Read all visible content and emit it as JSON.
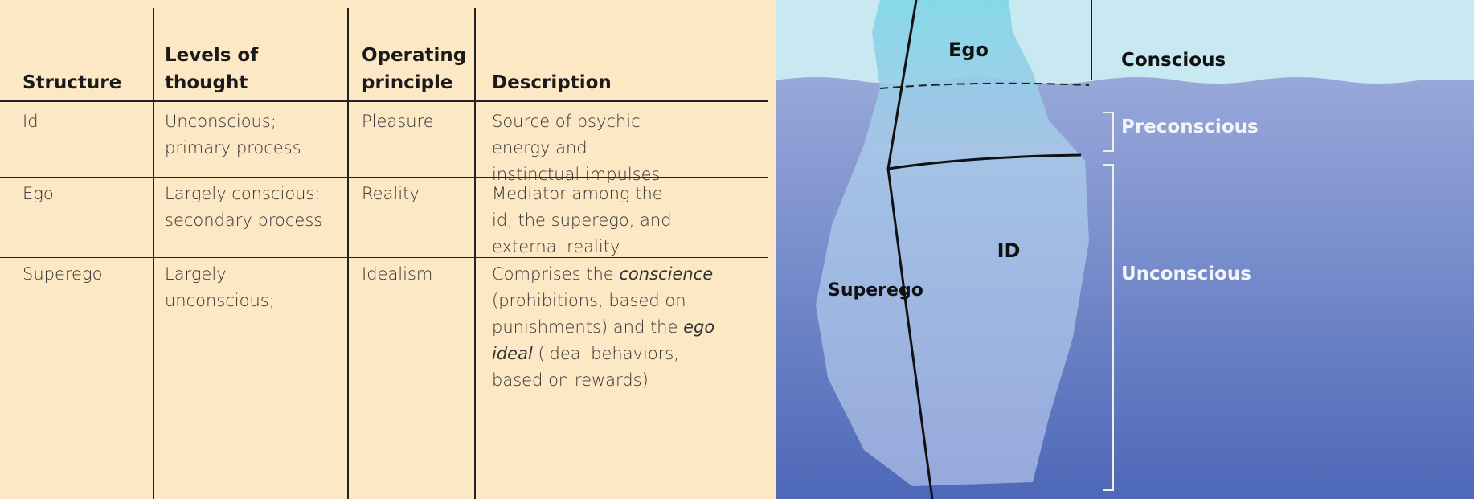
{
  "table": {
    "headers": [
      "Structure",
      "Levels of thought",
      "Operating principle",
      "Description"
    ],
    "rows": [
      [
        [
          "Id"
        ],
        [
          "Unconscious;",
          "primary process"
        ],
        [
          "Pleasure"
        ],
        [
          "Source of psychic",
          "energy and",
          "instinctual impulses"
        ]
      ],
      [
        [
          "Ego"
        ],
        [
          "Largely conscious;",
          "secondary process"
        ],
        [
          "Reality"
        ],
        [
          "Mediator among the",
          "id, the superego, and",
          "external reality"
        ]
      ],
      [
        [
          "Superego"
        ],
        [
          "Largely",
          "unconscious;"
        ],
        [
          "Idealism"
        ],
        [
          [
            {
              "text": "Comprises the "
            },
            {
              "text": "conscience",
              "em": true
            }
          ],
          "(prohibitions, based on",
          [
            {
              "text": "punishments) and the "
            },
            {
              "text": "ego",
              "em": true
            }
          ],
          [
            {
              "text": "ideal",
              "em": true
            },
            {
              "text": " (ideal behaviors,"
            }
          ],
          "based on rewards)"
        ]
      ]
    ]
  },
  "diagram": {
    "parts": {
      "ego": "Ego",
      "id": "ID",
      "superego": "Superego"
    },
    "levels": {
      "conscious": "Conscious",
      "preconscious": "Preconscious",
      "unconscious": "Unconscious"
    }
  }
}
